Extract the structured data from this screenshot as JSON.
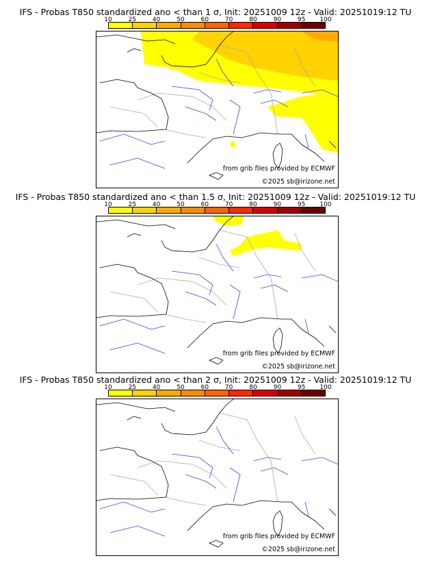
{
  "colorbar": {
    "ticks": [
      "10",
      "25",
      "40",
      "50",
      "60",
      "70",
      "80",
      "90",
      "95",
      "100"
    ],
    "colors": [
      "#ffff00",
      "#ffd200",
      "#ffaa00",
      "#ff8c00",
      "#ff6400",
      "#ff2800",
      "#dc0000",
      "#a00000",
      "#6e0000"
    ]
  },
  "panels": [
    {
      "title": "IFS - Probas T850  standardized ano < than 1 σ, Init: 20251009 12z - Valid: 20251019:12 TU",
      "source": "from grib files provided by ECMWF",
      "copyright": "©2025 sb@irizone.net"
    },
    {
      "title": "IFS - Probas T850  standardized ano < than 1.5 σ, Init: 20251009 12z - Valid: 20251019:12 TU",
      "source": "from grib files provided by ECMWF",
      "copyright": "©2025 sb@irizone.net"
    },
    {
      "title": "IFS - Probas T850  standardized ano < than 2 σ, Init: 20251009 12z - Valid: 20251019:12 TU",
      "source": "from grib files provided by ECMWF",
      "copyright": "©2025 sb@irizone.net"
    }
  ]
}
